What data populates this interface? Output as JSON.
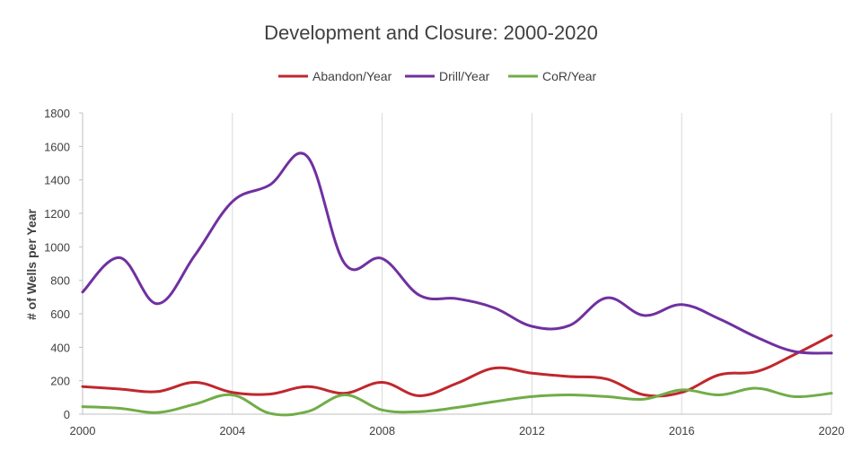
{
  "chart_data": {
    "type": "line",
    "title": "Development and Closure: 2000-2020",
    "xlabel": "",
    "ylabel": "# of Wells per Year",
    "xlim": [
      2000,
      2020
    ],
    "ylim": [
      0,
      1800
    ],
    "x_ticks": [
      "2000",
      "2004",
      "2008",
      "2012",
      "2016",
      "2020"
    ],
    "y_ticks": [
      "0",
      "200",
      "400",
      "600",
      "800",
      "1000",
      "1200",
      "1400",
      "1600",
      "1800"
    ],
    "grid": "vertical",
    "legend_position": "top",
    "x": [
      2000,
      2001,
      2002,
      2003,
      2004,
      2005,
      2006,
      2007,
      2008,
      2009,
      2010,
      2011,
      2012,
      2013,
      2014,
      2015,
      2016,
      2017,
      2018,
      2019,
      2020
    ],
    "series": [
      {
        "name": "Abandon/Year",
        "color": "#c0272d",
        "values": [
          165,
          150,
          135,
          190,
          130,
          120,
          165,
          125,
          190,
          110,
          185,
          275,
          245,
          225,
          210,
          115,
          130,
          235,
          255,
          355,
          470
        ]
      },
      {
        "name": "Drill/Year",
        "color": "#7030a0",
        "values": [
          730,
          935,
          660,
          950,
          1270,
          1370,
          1540,
          900,
          930,
          710,
          690,
          635,
          525,
          530,
          695,
          590,
          655,
          570,
          460,
          375,
          365
        ]
      },
      {
        "name": "CoR/Year",
        "color": "#70ad47",
        "values": [
          45,
          35,
          10,
          60,
          115,
          5,
          15,
          115,
          25,
          15,
          40,
          75,
          105,
          115,
          105,
          90,
          145,
          115,
          155,
          105,
          125
        ]
      }
    ]
  }
}
